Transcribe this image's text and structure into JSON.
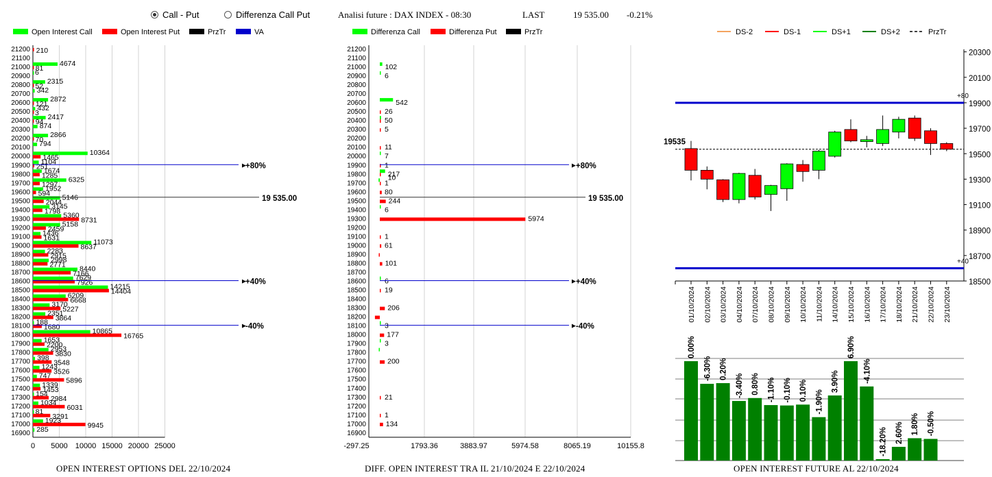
{
  "header": {
    "radio_call_put": "Call - Put",
    "radio_diff": "Differenza Call Put",
    "title": "Analisi future : DAX INDEX - 08:30",
    "last_label": "LAST",
    "last_value": "19 535.00",
    "change": "-0.21%"
  },
  "colors": {
    "green": "#00ff00",
    "red": "#ff0000",
    "darkgreen": "#008000",
    "blue": "#0000cc",
    "black": "#000000",
    "orange": "#f4a460",
    "grid": "#d3d3d3"
  },
  "panel1": {
    "title": "OPEN INTEREST OPTIONS DEL 22/10/2024",
    "legend": [
      "Open Interest Call",
      "Open Interest Put",
      "PrzTr",
      "VA"
    ]
  },
  "panel2": {
    "title": "DIFF. OPEN INTEREST TRA IL 21/10/2024 E 22/10/2024",
    "legend": [
      "Differenza Call",
      "Differenza Put",
      "PrzTr"
    ]
  },
  "panel3": {
    "title": "OPEN INTEREST FUTURE AL 22/10/2024",
    "legend": [
      "DS-2",
      "DS-1",
      "DS+1",
      "DS+2",
      "PrzTr"
    ]
  },
  "chart_data": [
    {
      "type": "bar",
      "orientation": "horizontal",
      "categories": [
        21200,
        21100,
        21000,
        20900,
        20800,
        20700,
        20600,
        20500,
        20400,
        20300,
        20200,
        20100,
        20000,
        19900,
        19800,
        19700,
        19600,
        19500,
        19400,
        19300,
        19200,
        19100,
        19000,
        18900,
        18800,
        18700,
        18600,
        18500,
        18400,
        18300,
        18200,
        18100,
        18000,
        17900,
        17800,
        17700,
        17600,
        17500,
        17400,
        17300,
        17200,
        17100,
        17000,
        16900
      ],
      "series": [
        {
          "name": "Open Interest Call",
          "values": [
            0,
            0,
            4674,
            6,
            2315,
            342,
            2872,
            432,
            2417,
            874,
            2866,
            794,
            10364,
            1104,
            1674,
            6325,
            1952,
            5146,
            3145,
            5360,
            5158,
            1436,
            11073,
            2283,
            2998,
            8440,
            7629,
            14215,
            6209,
            3170,
            2351,
            188,
            10865,
            1653,
            2953,
            398,
            1243,
            747,
            1339,
            154,
            1034,
            81,
            1923,
            285
          ]
        },
        {
          "name": "Open Interest Put",
          "values": [
            210,
            0,
            81,
            0,
            52,
            0,
            121,
            3,
            94,
            0,
            70,
            0,
            1465,
            251,
            1285,
            1297,
            594,
            2044,
            1798,
            8731,
            2459,
            1631,
            8637,
            2915,
            2771,
            7166,
            7926,
            14404,
            6668,
            5227,
            3864,
            1680,
            16765,
            2200,
            3830,
            3548,
            3526,
            5896,
            1453,
            2984,
            6031,
            3291,
            9945,
            0
          ]
        }
      ],
      "reference_lines": [
        {
          "label": "+80%",
          "strike": 19900
        },
        {
          "label": "19 535.00",
          "strike": 19535
        },
        {
          "label": "+40%",
          "strike": 18600
        },
        {
          "label": "-40%",
          "strike": 18100
        }
      ],
      "xticks": [
        0,
        5000,
        10000,
        15000,
        20000,
        25000
      ],
      "xlim": [
        0,
        25000
      ]
    },
    {
      "type": "bar",
      "orientation": "horizontal",
      "categories": [
        21200,
        21100,
        21000,
        20900,
        20800,
        20700,
        20600,
        20500,
        20400,
        20300,
        20200,
        20100,
        20000,
        19900,
        19800,
        19700,
        19600,
        19500,
        19400,
        19300,
        19200,
        19100,
        19000,
        18900,
        18800,
        18700,
        18600,
        18500,
        18400,
        18300,
        18200,
        18100,
        18000,
        17900,
        17800,
        17700,
        17600,
        17500,
        17400,
        17300,
        17200,
        17100,
        17000,
        16900
      ],
      "series": [
        {
          "name": "Differenza Call",
          "values": [
            0,
            0,
            102,
            6,
            0,
            0,
            542,
            0,
            50,
            0,
            0,
            0,
            7,
            0,
            217,
            -50,
            0,
            0,
            6,
            0,
            0,
            0,
            0,
            0,
            0,
            0,
            6,
            0,
            0,
            0,
            0,
            3,
            0,
            3,
            -20,
            0,
            0,
            0,
            0,
            0,
            0,
            0,
            0,
            0
          ]
        },
        {
          "name": "Differenza Put",
          "values": [
            0,
            0,
            0,
            0,
            0,
            0,
            0,
            26,
            1,
            5,
            0,
            11,
            0,
            1,
            10,
            1,
            80,
            244,
            0,
            5974,
            0,
            1,
            61,
            -40,
            101,
            0,
            0,
            19,
            0,
            206,
            -200,
            0,
            177,
            0,
            0,
            200,
            0,
            0,
            0,
            21,
            0,
            1,
            134,
            0
          ]
        }
      ],
      "data_labels": {
        "21000": "102",
        "20900": "6",
        "20600": "542",
        "20500": "26",
        "20400": "50",
        "20300": "5",
        "20100": "11",
        "20000": "7",
        "19900": "1",
        "19800": "217",
        "19790": "10",
        "19700": "1",
        "19600": "80",
        "19500": "244",
        "19400": "6",
        "19300": "5974",
        "19100": "1",
        "19000": "61",
        "18800": "101",
        "18600": "6",
        "18500": "19",
        "18300": "206",
        "18100": "3",
        "18000": "177",
        "17900": "3",
        "17700": "200",
        "17300": "21",
        "17100": "1",
        "17000": "134"
      },
      "reference_lines": [
        {
          "label": "+80%",
          "strike": 19900
        },
        {
          "label": "19 535.00",
          "strike": 19535
        },
        {
          "label": "+40%",
          "strike": 18600
        },
        {
          "label": "-40%",
          "strike": 18100
        }
      ],
      "xticks": [
        "-297.25",
        "1793.36",
        "3883.97",
        "5974.58",
        "8065.19",
        "10155.8"
      ],
      "xlim": [
        -297.25,
        10155.8
      ]
    },
    {
      "type": "candlestick",
      "categories": [
        "01/10/2024",
        "02/10/2024",
        "03/10/2024",
        "04/10/2024",
        "07/10/2024",
        "08/10/2024",
        "09/10/2024",
        "10/10/2024",
        "11/10/2024",
        "14/10/2024",
        "15/10/2024",
        "16/10/2024",
        "17/10/2024",
        "18/10/2024",
        "21/10/2024",
        "22/10/2024",
        "23/10/2024"
      ],
      "ohlc": [
        [
          19540,
          19600,
          19290,
          19370,
          "down"
        ],
        [
          19370,
          19400,
          19220,
          19300,
          "down"
        ],
        [
          19295,
          19300,
          19120,
          19140,
          "down"
        ],
        [
          19140,
          19350,
          19110,
          19345,
          "up"
        ],
        [
          19330,
          19380,
          19140,
          19160,
          "down"
        ],
        [
          19180,
          19255,
          19050,
          19250,
          "up"
        ],
        [
          19225,
          19425,
          19130,
          19420,
          "up"
        ],
        [
          19415,
          19450,
          19280,
          19360,
          "down"
        ],
        [
          19370,
          19530,
          19300,
          19520,
          "up"
        ],
        [
          19480,
          19680,
          19470,
          19670,
          "up"
        ],
        [
          19690,
          19770,
          19590,
          19600,
          "down"
        ],
        [
          19595,
          19640,
          19550,
          19610,
          "up"
        ],
        [
          19580,
          19800,
          19560,
          19690,
          "up"
        ],
        [
          19670,
          19790,
          19620,
          19770,
          "up"
        ],
        [
          19780,
          19800,
          19600,
          19620,
          "down"
        ],
        [
          19680,
          19700,
          19490,
          19580,
          "down"
        ],
        [
          19580,
          19590,
          19520,
          19535,
          "down"
        ]
      ],
      "price_level": {
        "label": "19535",
        "value": 19535
      },
      "bands": [
        {
          "label": "+80",
          "value": 19900
        },
        {
          "label": "+40",
          "value": 18600
        }
      ],
      "yticks": [
        20300,
        20100,
        19900,
        19700,
        19500,
        19300,
        19100,
        18900,
        18700,
        18500
      ],
      "ylim": [
        18500,
        20380
      ]
    },
    {
      "type": "bar",
      "categories": [
        "01/10/2024",
        "02/10/2024",
        "03/10/2024",
        "04/10/2024",
        "07/10/2024",
        "08/10/2024",
        "09/10/2024",
        "10/10/2024",
        "11/10/2024",
        "14/10/2024",
        "15/10/2024",
        "16/10/2024",
        "17/10/2024",
        "18/10/2024",
        "21/10/2024",
        "22/10/2024"
      ],
      "labels": [
        "0.00%",
        "-6.30%",
        "0.20%",
        "-3.40%",
        "0.80%",
        "-1.10%",
        "-0.10%",
        "0.10%",
        "-1.90%",
        "3.90%",
        "6.90%",
        "-4.10%",
        "-18.20%",
        "2.60%",
        "1.80%",
        "-0.50%"
      ],
      "values": [
        100,
        76.9,
        77.6,
        59.4,
        62.4,
        55.2,
        54.8,
        55.7,
        42.9,
        65.0,
        100,
        74.2,
        0,
        12.6,
        21.4,
        20.7
      ]
    }
  ]
}
